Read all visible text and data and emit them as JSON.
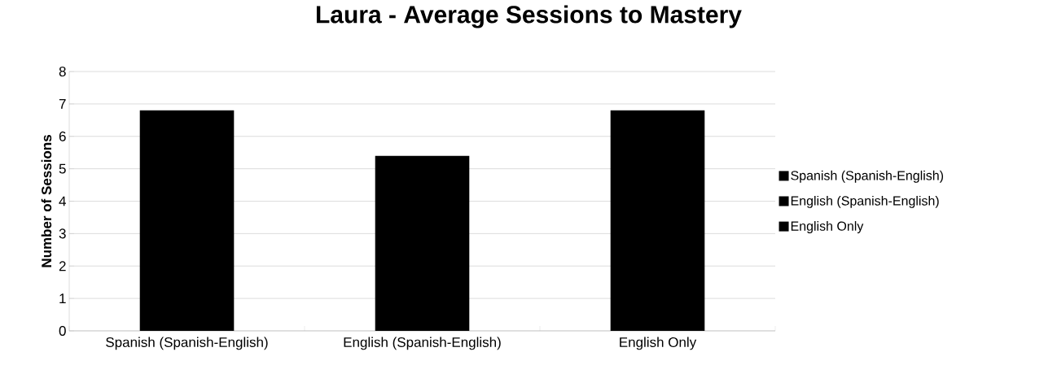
{
  "chart_data": {
    "type": "bar",
    "title": "Laura - Average Sessions to Mastery",
    "ylabel": "Number of Sessions",
    "categories": [
      "Spanish (Spanish-English)",
      "English (Spanish-English)",
      "English Only"
    ],
    "series": [
      {
        "name": "Spanish (Spanish-English)",
        "color": "#000000",
        "values": [
          6.8,
          null,
          null
        ]
      },
      {
        "name": "English (Spanish-English)",
        "color": "#000000",
        "values": [
          null,
          5.4,
          null
        ]
      },
      {
        "name": "English Only",
        "color": "#000000",
        "values": [
          null,
          null,
          6.8
        ]
      }
    ],
    "ylim": [
      0,
      8
    ],
    "yticks": [
      0,
      1,
      2,
      3,
      4,
      5,
      6,
      7,
      8
    ],
    "grid": "y",
    "legend": "right"
  }
}
